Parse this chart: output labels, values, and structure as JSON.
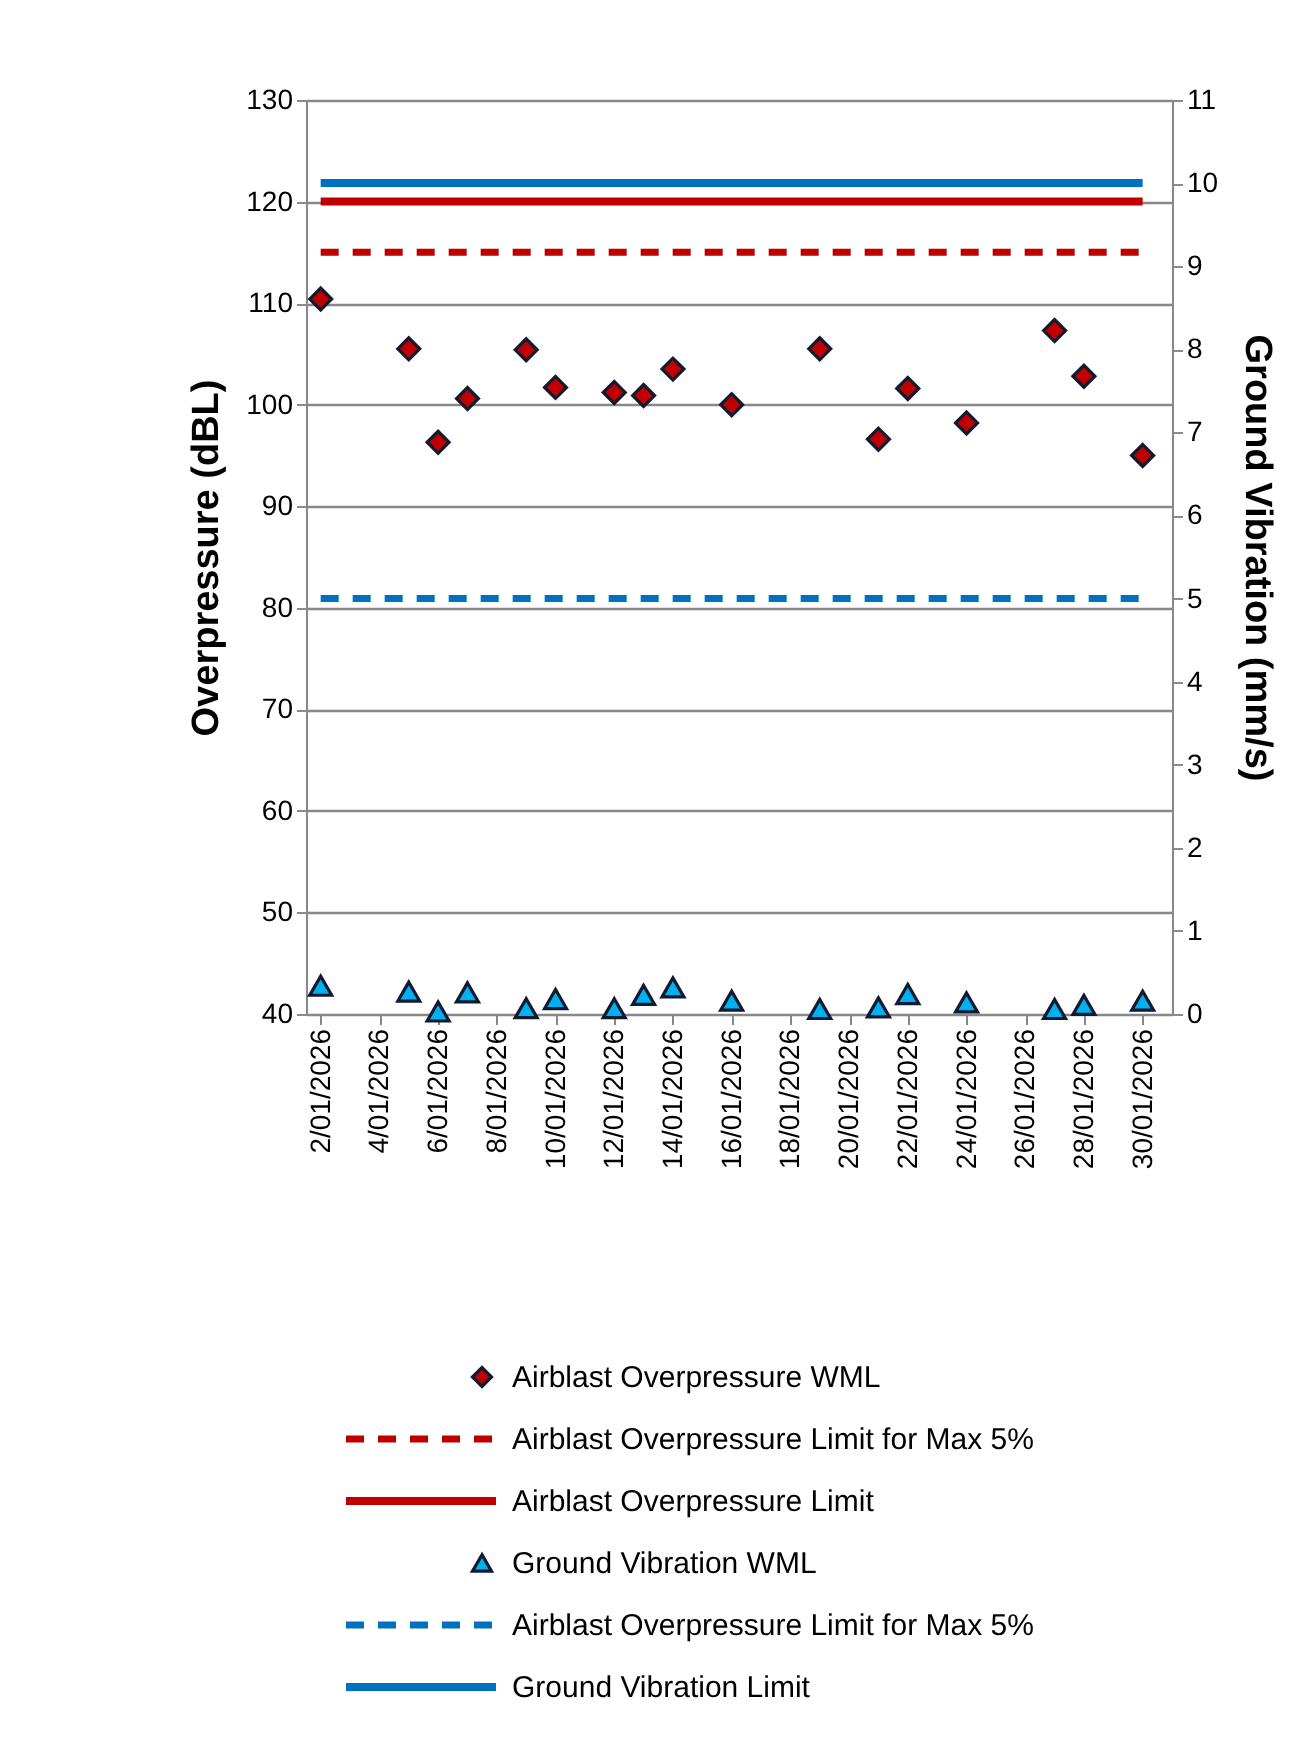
{
  "chart_data": {
    "type": "scatter",
    "ylabel": "Overpressure (dBL)",
    "y2label": "Ground Vibration (mm/s)",
    "xlim": [
      "2026-01-01T12:00",
      "2026-01-31"
    ],
    "xticks": [
      {
        "value": "2026-01-02",
        "label": "2/01/2026"
      },
      {
        "value": "2026-01-04",
        "label": "4/01/2026"
      },
      {
        "value": "2026-01-06",
        "label": "6/01/2026"
      },
      {
        "value": "2026-01-08",
        "label": "8/01/2026"
      },
      {
        "value": "2026-01-10",
        "label": "10/01/2026"
      },
      {
        "value": "2026-01-12",
        "label": "12/01/2026"
      },
      {
        "value": "2026-01-14",
        "label": "14/01/2026"
      },
      {
        "value": "2026-01-16",
        "label": "16/01/2026"
      },
      {
        "value": "2026-01-18",
        "label": "18/01/2026"
      },
      {
        "value": "2026-01-20",
        "label": "20/01/2026"
      },
      {
        "value": "2026-01-22",
        "label": "22/01/2026"
      },
      {
        "value": "2026-01-24",
        "label": "24/01/2026"
      },
      {
        "value": "2026-01-26",
        "label": "26/01/2026"
      },
      {
        "value": "2026-01-28",
        "label": "28/01/2026"
      },
      {
        "value": "2026-01-30",
        "label": "30/01/2026"
      }
    ],
    "ylim": [
      40,
      130
    ],
    "yticks": [
      40,
      50,
      60,
      70,
      80,
      90,
      100,
      110,
      120,
      130
    ],
    "y2lim": [
      0,
      11
    ],
    "y2ticks": [
      0,
      1,
      2,
      3,
      4,
      5,
      6,
      7,
      8,
      9,
      10,
      11
    ],
    "grid": "y",
    "legend": "bottom",
    "series": [
      {
        "name": "Airblast Overpressure WML",
        "type": "scatter",
        "marker": "diamond",
        "color": "#c00000",
        "x": [
          "2026-01-02",
          "2026-01-05",
          "2026-01-06",
          "2026-01-07",
          "2026-01-09",
          "2026-01-10",
          "2026-01-12",
          "2026-01-13",
          "2026-01-14",
          "2026-01-16",
          "2026-01-19",
          "2026-01-21",
          "2026-01-22",
          "2026-01-24",
          "2026-01-27",
          "2026-01-28",
          "2026-01-30"
        ],
        "values": [
          110.4,
          105.5,
          96.3,
          100.6,
          105.4,
          101.7,
          101.2,
          100.9,
          103.5,
          100.0,
          105.5,
          96.6,
          101.6,
          98.2,
          107.3,
          102.8,
          95.0
        ]
      },
      {
        "name": "Airblast Overpressure Limit for Max 5%",
        "type": "line",
        "line_style": "dashed",
        "color": "#c00000",
        "x": [
          "2026-01-02",
          "2026-01-30"
        ],
        "values": [
          115,
          115
        ]
      },
      {
        "name": "Airblast Overpressure Limit",
        "type": "line",
        "line_style": "solid",
        "color": "#c00000",
        "x": [
          "2026-01-02",
          "2026-01-30"
        ],
        "values": [
          120,
          120
        ]
      },
      {
        "name": "Ground Vibration WML",
        "type": "scatter",
        "marker": "triangle",
        "color": "#00b0f0",
        "axis": "y2",
        "x": [
          "2026-01-02",
          "2026-01-05",
          "2026-01-06",
          "2026-01-07",
          "2026-01-09",
          "2026-01-10",
          "2026-01-12",
          "2026-01-13",
          "2026-01-14",
          "2026-01-16",
          "2026-01-19",
          "2026-01-21",
          "2026-01-22",
          "2026-01-24",
          "2026-01-27",
          "2026-01-28",
          "2026-01-30"
        ],
        "values": [
          0.34,
          0.27,
          0.03,
          0.26,
          0.07,
          0.18,
          0.07,
          0.23,
          0.32,
          0.16,
          0.06,
          0.08,
          0.24,
          0.14,
          0.06,
          0.11,
          0.16
        ]
      },
      {
        "name": "Airblast Overpressure Limit for Max 5%",
        "type": "line",
        "line_style": "dashed",
        "color": "#0070c0",
        "axis": "y2",
        "x": [
          "2026-01-02",
          "2026-01-30"
        ],
        "values": [
          5,
          5
        ]
      },
      {
        "name": "Ground Vibration Limit",
        "type": "line",
        "line_style": "solid",
        "color": "#0070c0",
        "axis": "y2",
        "x": [
          "2026-01-02",
          "2026-01-30"
        ],
        "values": [
          10,
          10
        ]
      }
    ]
  }
}
